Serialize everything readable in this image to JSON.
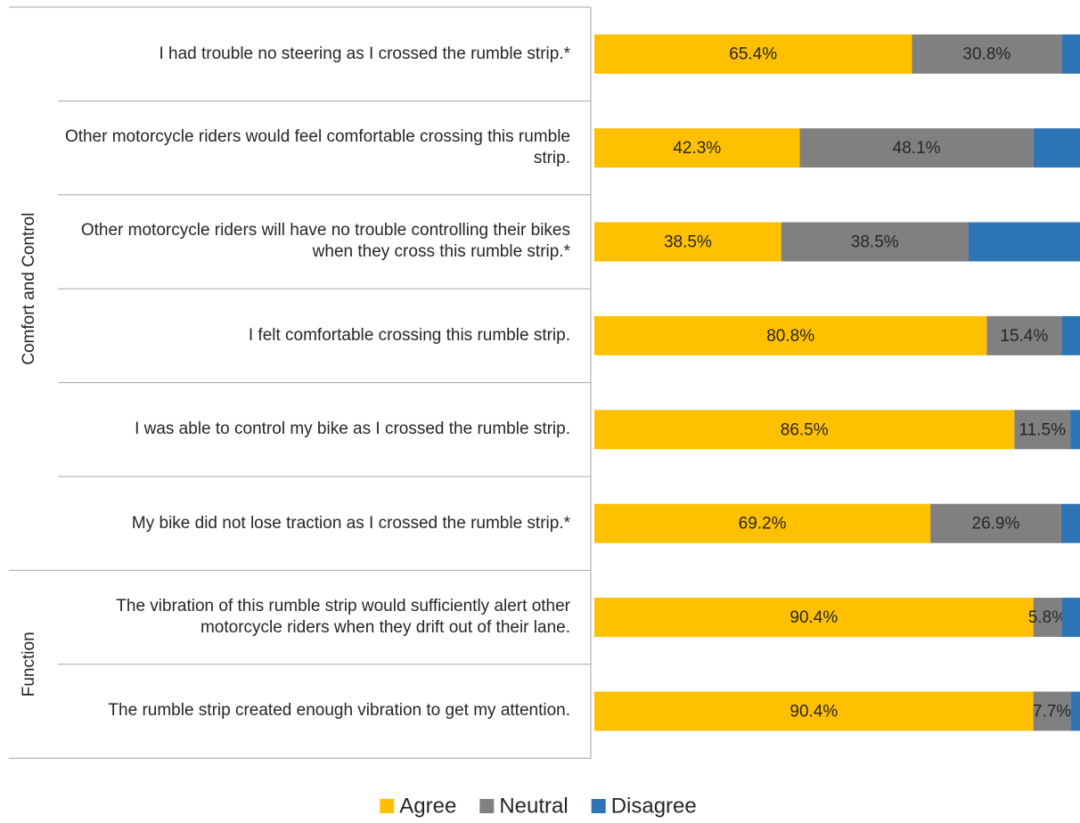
{
  "chart_data": {
    "type": "stacked-barh",
    "groups": [
      {
        "name": "Comfort and Control",
        "categories": [
          "I had trouble no steering as I crossed the rumble strip.*",
          "Other motorcycle riders would feel comfortable crossing this rumble strip.",
          "Other motorcycle riders will have no trouble controlling their bikes when they cross this rumble strip.*",
          "I felt comfortable crossing this rumble strip.",
          "I was able to control my bike as I crossed the rumble strip.",
          "My bike did not lose traction as I crossed the rumble strip.*"
        ]
      },
      {
        "name": "Function",
        "categories": [
          "The vibration of this rumble strip would sufficiently alert other motorcycle riders when they drift out of their lane.",
          "The rumble strip created enough vibration to get my attention."
        ]
      }
    ],
    "series": [
      {
        "name": "Agree",
        "color": "#ffc000",
        "values": [
          65.4,
          42.3,
          38.5,
          80.8,
          86.5,
          69.2,
          90.4,
          90.4
        ],
        "value_labels": [
          "65.4%",
          "42.3%",
          "38.5%",
          "80.8%",
          "86.5%",
          "69.2%",
          "90.4%",
          "90.4%"
        ]
      },
      {
        "name": "Neutral",
        "color": "#808080",
        "values": [
          30.8,
          48.1,
          38.5,
          15.4,
          11.5,
          26.9,
          5.8,
          7.7
        ],
        "value_labels": [
          "30.8%",
          "48.1%",
          "38.5%",
          "15.4%",
          "11.5%",
          "26.9%",
          "5.8%",
          "7.7%"
        ]
      },
      {
        "name": "Disagree",
        "color": "#2e75b6",
        "values": [
          3.8,
          9.6,
          23.0,
          3.8,
          2.0,
          3.9,
          3.8,
          1.9
        ]
      }
    ],
    "xlim": [
      0,
      100
    ]
  }
}
